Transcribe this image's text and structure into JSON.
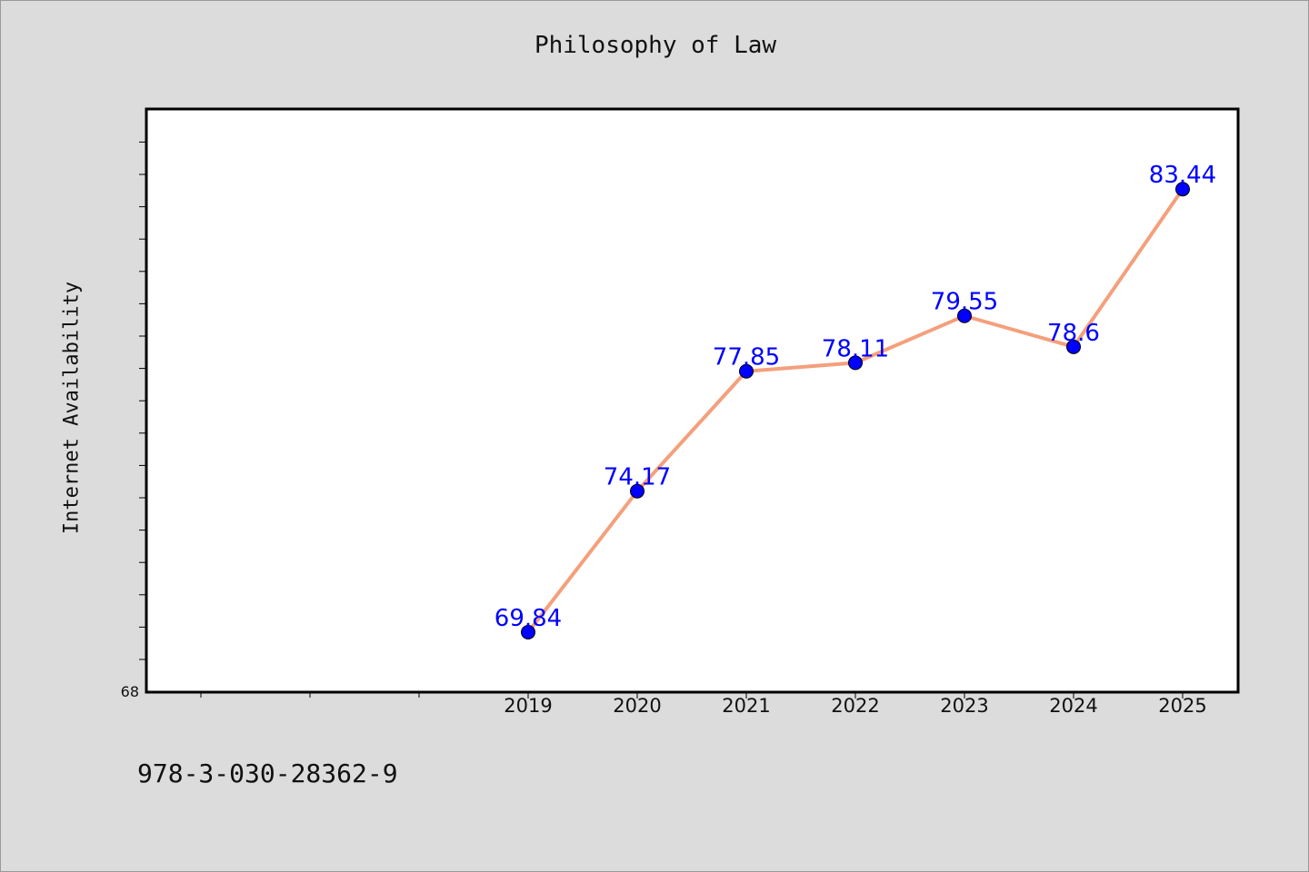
{
  "chart_data": {
    "type": "line",
    "title": "Philosophy of Law",
    "xlabel": "",
    "ylabel": "Internet Availability",
    "categories": [
      "2019",
      "2020",
      "2021",
      "2022",
      "2023",
      "2024",
      "2025"
    ],
    "series": [
      {
        "values": [
          69.84,
          74.17,
          77.85,
          78.11,
          79.55,
          78.6,
          83.44
        ],
        "labels": [
          "69.84",
          "74.17",
          "77.85",
          "78.11",
          "79.55",
          "78.6",
          "83.44"
        ],
        "line_color": "#f4a07c",
        "marker_color": "#0000ff"
      }
    ],
    "y_tick_label": "68",
    "ylim": [
      68,
      85.9
    ],
    "grid": false,
    "legend": "none"
  },
  "footer": {
    "code": "978-3-030-28362-9"
  }
}
